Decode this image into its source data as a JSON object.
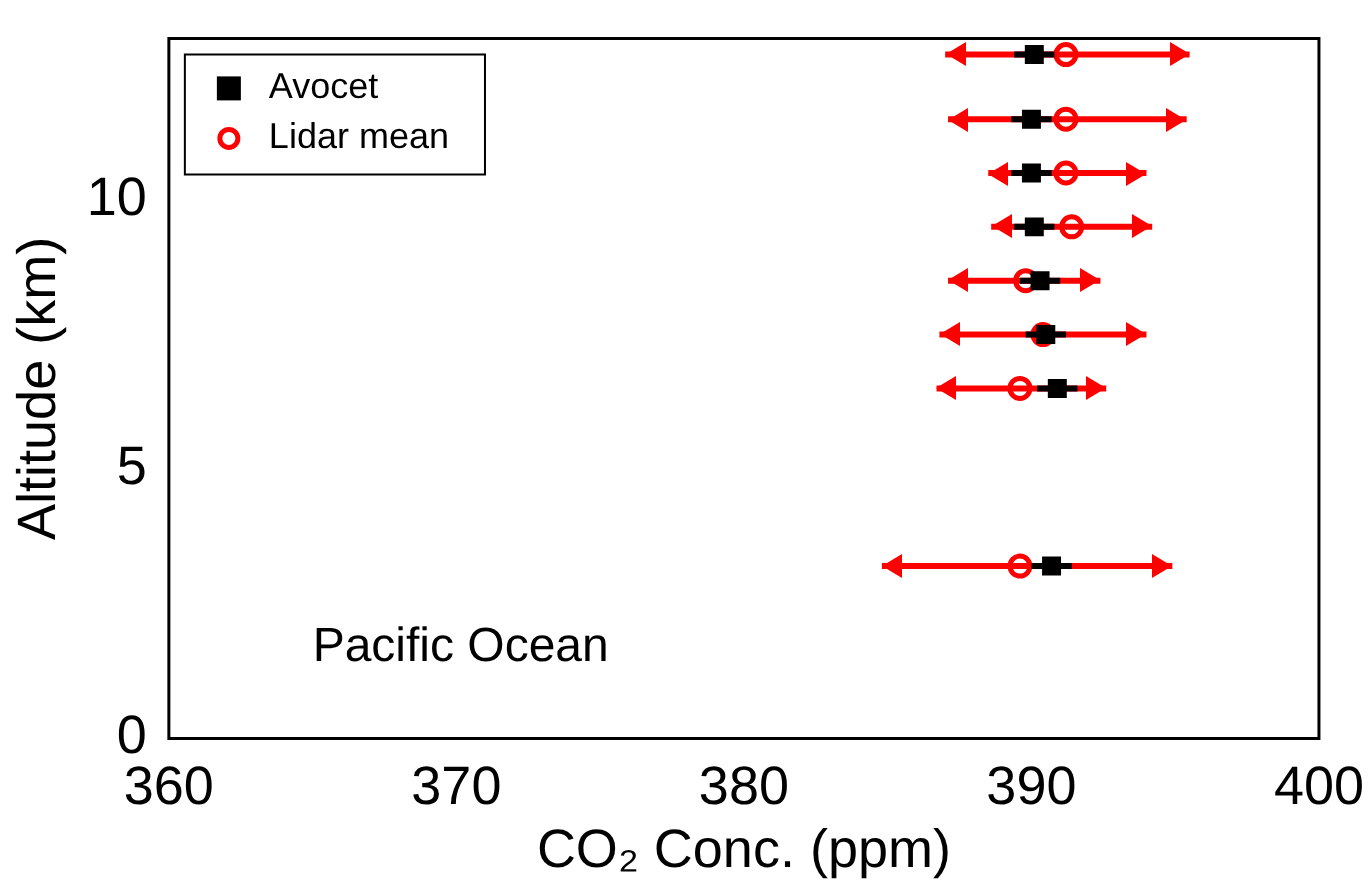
{
  "chart_data": {
    "type": "scatter",
    "xlabel": "CO₂ Conc. (ppm)",
    "ylabel": "Altitude (km)",
    "xlim": [
      360,
      400
    ],
    "xticks": [
      360,
      370,
      380,
      390,
      400
    ],
    "ylim": [
      0,
      13
    ],
    "yticks": [
      0,
      5,
      10
    ],
    "grid": false,
    "legend": "top left",
    "annotations": [
      "Pacific Ocean"
    ],
    "series": [
      {
        "name": "Avocet",
        "color": "#000000",
        "marker": "square",
        "x": [
          390.1,
          390.0,
          390.0,
          390.1,
          390.3,
          390.5,
          390.9,
          390.7
        ],
        "values": [
          12.7,
          11.5,
          10.5,
          9.5,
          8.5,
          7.5,
          6.5,
          3.2
        ],
        "xerrors": [
          0.7,
          0.7,
          0.7,
          0.7,
          0.7,
          0.7,
          0.7,
          0.7
        ]
      },
      {
        "name": "Lidar mean",
        "color": "#ff0000",
        "marker": "circle",
        "x": [
          391.2,
          391.2,
          391.2,
          391.4,
          389.8,
          390.4,
          389.6,
          389.6
        ],
        "values": [
          12.7,
          11.5,
          10.5,
          9.5,
          8.5,
          7.5,
          6.5,
          3.2
        ],
        "xerrors": [
          [
            387.0,
            395.5
          ],
          [
            387.1,
            395.4
          ],
          [
            388.5,
            394.0
          ],
          [
            388.6,
            394.2
          ],
          [
            387.1,
            392.4
          ],
          [
            386.8,
            394.0
          ],
          [
            386.7,
            392.6
          ],
          [
            384.8,
            394.9
          ]
        ]
      }
    ]
  }
}
